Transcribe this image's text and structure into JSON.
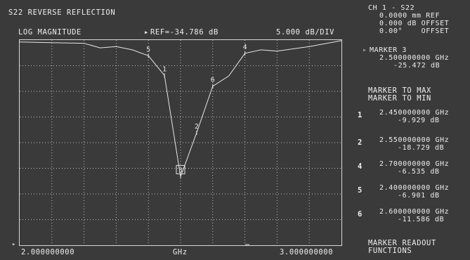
{
  "header": {
    "title": "S22 REVERSE REFLECTION",
    "format": "LOG MAGNITUDE",
    "ref_marker": "▸",
    "ref": "REF=-34.786 dB",
    "scale": "5.000 dB/DIV"
  },
  "channel": {
    "line1": "CH 1 - S22",
    "line2": "0.0000 mm REF",
    "line3": "0.000 dB OFFSET",
    "line4": "0.00°    OFFSET"
  },
  "active_marker": {
    "pointer": "▸",
    "label": "MARKER 3",
    "freq": "2.500000000 GHz",
    "value": "-25.472 dB"
  },
  "menu": {
    "marker_to_max": "MARKER TO MAX",
    "marker_to_min": "MARKER TO MIN",
    "readout_line1": "MARKER READOUT",
    "readout_line2": "FUNCTIONS"
  },
  "marker_list": [
    {
      "num": "1",
      "freq": "2.450000000 GHz",
      "value": "-9.929 dB"
    },
    {
      "num": "2",
      "freq": "2.550000000 GHz",
      "value": "-18.729 dB"
    },
    {
      "num": "4",
      "freq": "2.700000000 GHz",
      "value": "-6.535 dB"
    },
    {
      "num": "5",
      "freq": "2.400000000 GHz",
      "value": "-6.901 dB"
    },
    {
      "num": "6",
      "freq": "2.600000000 GHz",
      "value": "-11.586 dB"
    }
  ],
  "axis": {
    "start": "2.000000000",
    "unit": "GHz",
    "stop": "3.000000000"
  },
  "colors": {
    "background": "#3a3a3a",
    "grid": "#bdbdbd",
    "trace": "#e6e6e6"
  },
  "chart_data": {
    "type": "line",
    "x_unit": "GHz",
    "y_unit": "dB",
    "xlim": [
      2.0,
      3.0
    ],
    "ylim": [
      -36.0,
      -4.5
    ],
    "ref_level": -34.786,
    "scale_per_div": 5.0,
    "grid": true,
    "series": [
      {
        "x": [
          2.0,
          2.1,
          2.2,
          2.25,
          2.3,
          2.35,
          2.4,
          2.45,
          2.5,
          2.55,
          2.6,
          2.65,
          2.7,
          2.75,
          2.8,
          2.9,
          3.0
        ],
        "y": [
          -4.8,
          -4.9,
          -5.0,
          -5.7,
          -5.5,
          -6.0,
          -6.901,
          -9.929,
          -25.472,
          -18.729,
          -11.586,
          -10.0,
          -6.535,
          -6.0,
          -6.2,
          -5.5,
          -4.6
        ]
      }
    ],
    "markers": [
      {
        "label": "1",
        "x": 2.45,
        "y": -9.929,
        "active": false
      },
      {
        "label": "2",
        "x": 2.55,
        "y": -18.729,
        "active": false
      },
      {
        "label": "3",
        "x": 2.5,
        "y": -25.472,
        "active": true
      },
      {
        "label": "4",
        "x": 2.7,
        "y": -6.535,
        "active": false
      },
      {
        "label": "5",
        "x": 2.4,
        "y": -6.901,
        "active": false
      },
      {
        "label": "6",
        "x": 2.6,
        "y": -11.586,
        "active": false
      }
    ]
  }
}
